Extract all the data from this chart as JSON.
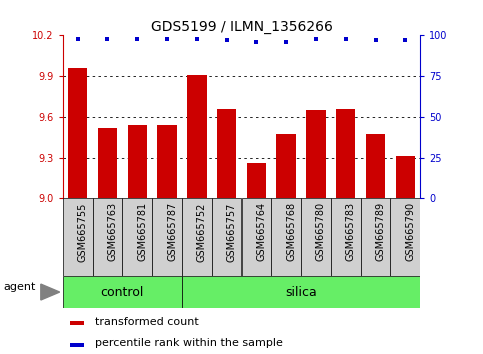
{
  "title": "GDS5199 / ILMN_1356266",
  "samples": [
    "GSM665755",
    "GSM665763",
    "GSM665781",
    "GSM665787",
    "GSM665752",
    "GSM665757",
    "GSM665764",
    "GSM665768",
    "GSM665780",
    "GSM665783",
    "GSM665789",
    "GSM665790"
  ],
  "red_values": [
    9.96,
    9.52,
    9.54,
    9.54,
    9.91,
    9.66,
    9.26,
    9.47,
    9.65,
    9.66,
    9.47,
    9.31
  ],
  "blue_values": [
    98,
    98,
    98,
    98,
    98,
    97,
    96,
    96,
    98,
    98,
    97,
    97
  ],
  "control_count": 4,
  "silica_count": 8,
  "ylim_left": [
    9.0,
    10.2
  ],
  "ylim_right": [
    0,
    100
  ],
  "yticks_left": [
    9.0,
    9.3,
    9.6,
    9.9,
    10.2
  ],
  "yticks_right": [
    0,
    25,
    50,
    75,
    100
  ],
  "grid_lines": [
    9.3,
    9.6,
    9.9
  ],
  "bar_color": "#cc0000",
  "dot_color": "#0000cc",
  "green_color": "#66ee66",
  "gray_color": "#d0d0d0",
  "agent_label": "agent",
  "legend_red": "transformed count",
  "legend_blue": "percentile rank within the sample",
  "background_color": "#ffffff",
  "bar_width": 0.65,
  "title_fontsize": 10,
  "tick_fontsize": 7,
  "legend_fontsize": 8,
  "group_fontsize": 9
}
